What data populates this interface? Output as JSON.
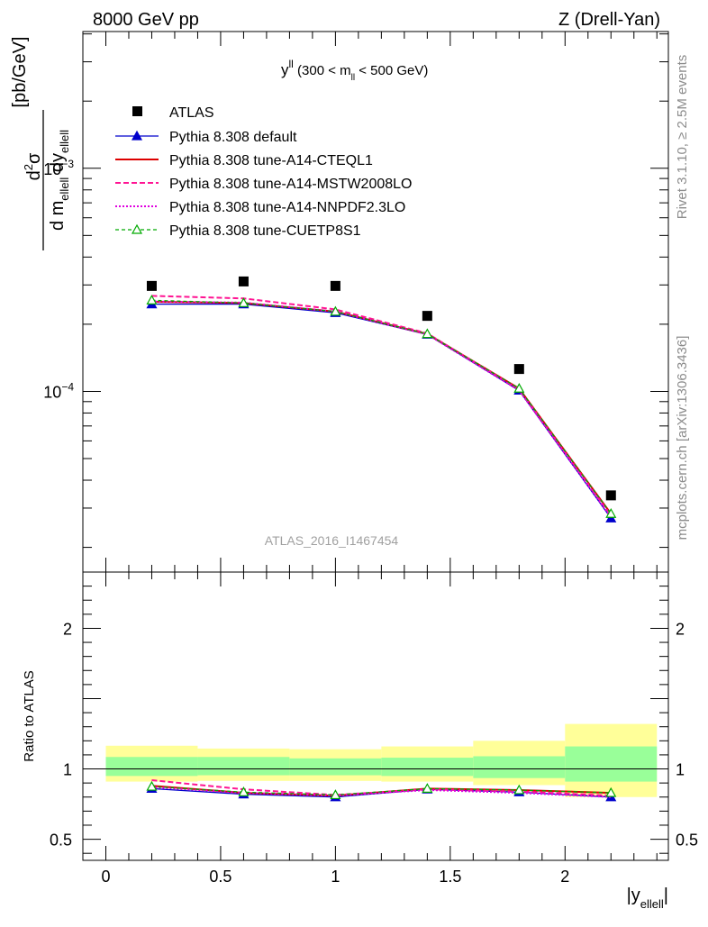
{
  "header": {
    "left_label": "8000 GeV pp",
    "right_label": "Z (Drell-Yan)"
  },
  "plot_title": {
    "main": "y",
    "main_sup": "ll",
    "range_open": " (300 < m",
    "range_sub": "ll",
    "range_close": " < 500 GeV)"
  },
  "side_labels": {
    "rivet": "Rivet 3.1.10, ≥ 2.5M events",
    "mcplots": "mcplots.cern.ch [arXiv:1306.3436]"
  },
  "watermark": "ATLAS_2016_I1467454",
  "axes": {
    "y_label_top": {
      "num_d": "d",
      "num_sup": "2",
      "num_sigma": "σ",
      "den_d1": "d m",
      "den_sub1": "ellell",
      "den_d2": " dy",
      "den_sub2": "ellell",
      "units": "[pb/GeV]"
    },
    "y_label_ratio": "Ratio to ATLAS",
    "x_label": {
      "pre": "|y",
      "sub": "ellell",
      "post": "|"
    },
    "top_ticks": [
      {
        "value": 0.001,
        "base": "10",
        "exp": "−3"
      },
      {
        "value": 0.0001,
        "base": "10",
        "exp": "−4"
      }
    ],
    "ratio_ticks": [
      {
        "value": 2,
        "label": "2"
      },
      {
        "value": 1,
        "label": "1"
      },
      {
        "value": 0.5,
        "label": "0.5"
      }
    ],
    "x_ticks": [
      {
        "value": 0,
        "label": "0"
      },
      {
        "value": 0.5,
        "label": "0.5"
      },
      {
        "value": 1,
        "label": "1"
      },
      {
        "value": 1.5,
        "label": "1.5"
      },
      {
        "value": 2,
        "label": "2"
      }
    ]
  },
  "chart_data": {
    "type": "line",
    "x_scale": "linear",
    "y_scale": "log",
    "xlim": [
      -0.1,
      2.45
    ],
    "ylim_top": [
      1.55e-05,
      0.0041
    ],
    "ylim_ratio": [
      0.35,
      2.4
    ],
    "bins": [
      [
        0.0,
        0.4
      ],
      [
        0.4,
        0.8
      ],
      [
        0.8,
        1.2
      ],
      [
        1.2,
        1.6
      ],
      [
        1.6,
        2.0
      ],
      [
        2.0,
        2.4
      ]
    ],
    "x": [
      0.2,
      0.6,
      1.0,
      1.4,
      1.8,
      2.2
    ],
    "data": {
      "name": "ATLAS",
      "values": [
        0.000297,
        0.000311,
        0.000297,
        0.000218,
        0.000126,
        3.42e-05
      ]
    },
    "ratio_bands": {
      "stat_lo": [
        0.95,
        0.955,
        0.955,
        0.95,
        0.935,
        0.91
      ],
      "stat_hi": [
        1.085,
        1.085,
        1.075,
        1.08,
        1.09,
        1.16
      ],
      "total_lo": [
        0.91,
        0.915,
        0.915,
        0.91,
        0.885,
        0.8
      ],
      "total_hi": [
        1.165,
        1.145,
        1.14,
        1.16,
        1.2,
        1.32
      ]
    },
    "series": [
      {
        "name": "Pythia 8.308 default",
        "color": "#0000cc",
        "dash": "",
        "marker": "triangle-filled",
        "values": [
          0.000246,
          0.000246,
          0.000225,
          0.00018,
          0.000101,
          2.7e-05
        ],
        "ratio": [
          0.86,
          0.82,
          0.8,
          0.855,
          0.835,
          0.8
        ]
      },
      {
        "name": "Pythia 8.308 tune-A14-CTEQL1",
        "color": "#dd0000",
        "dash": "",
        "marker": "none",
        "values": [
          0.000252,
          0.000249,
          0.000228,
          0.000181,
          0.000103,
          2.83e-05
        ],
        "ratio": [
          0.88,
          0.83,
          0.81,
          0.86,
          0.85,
          0.83
        ]
      },
      {
        "name": "Pythia 8.308 tune-A14-MSTW2008LO",
        "color": "#ff1493",
        "dash": "6,3",
        "marker": "none",
        "values": [
          0.000268,
          0.000261,
          0.000233,
          0.000182,
          0.000102,
          2.78e-05
        ],
        "ratio": [
          0.92,
          0.855,
          0.815,
          0.855,
          0.84,
          0.81
        ]
      },
      {
        "name": "Pythia 8.308 tune-A14-NNPDF2.3LO",
        "color": "#e000e0",
        "dash": "2,2",
        "marker": "none",
        "values": [
          0.000253,
          0.00025,
          0.000228,
          0.00018,
          0.000101,
          2.73e-05
        ],
        "ratio": [
          0.87,
          0.83,
          0.81,
          0.85,
          0.83,
          0.8
        ]
      },
      {
        "name": "Pythia 8.308 tune-CUETP8S1",
        "color": "#00aa00",
        "dash": "4,3",
        "marker": "triangle-open",
        "values": [
          0.000256,
          0.000249,
          0.000228,
          0.000181,
          0.000103,
          2.83e-05
        ],
        "ratio": [
          0.875,
          0.835,
          0.815,
          0.86,
          0.85,
          0.83
        ]
      }
    ],
    "legend": {
      "position": "top-left"
    },
    "grid": false
  }
}
